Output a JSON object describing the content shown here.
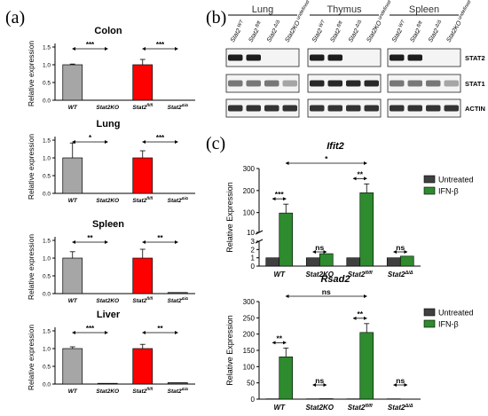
{
  "figure": {
    "panels": [
      {
        "label": "(a)"
      },
      {
        "label": "(b)"
      },
      {
        "label": "(c)"
      }
    ]
  },
  "panel_a_label": "(a)",
  "panel_b_label": "(b)",
  "panel_c_label": "(c)",
  "colors": {
    "wt": "#a6a6a6",
    "flox": "#ff0000",
    "untreated": "#404040",
    "ifn": "#2e8b2e"
  },
  "chart_data": [
    {
      "type": "bar",
      "title": "Colon",
      "ylabel": "Relative expression",
      "categories": [
        "WT",
        "Stat2KO",
        "Stat2fl/fl",
        "Stat2Δ/Δ"
      ],
      "values": [
        1.0,
        0.0,
        1.0,
        0.0
      ],
      "errors": [
        0.02,
        0,
        0.15,
        0
      ],
      "ylim": [
        0,
        1.5
      ],
      "yticks": [
        "0.0",
        "0.5",
        "1.0",
        "1.5"
      ],
      "significance": [
        "***",
        "***"
      ]
    },
    {
      "type": "bar",
      "title": "Lung",
      "ylabel": "Relative expression",
      "categories": [
        "WT",
        "Stat2KO",
        "Stat2fl/fl",
        "Stat2Δ/Δ"
      ],
      "values": [
        1.0,
        0.0,
        1.0,
        0.0
      ],
      "errors": [
        0.42,
        0,
        0.2,
        0
      ],
      "ylim": [
        0,
        1.5
      ],
      "yticks": [
        "0.0",
        "0.5",
        "1.0",
        "1.5"
      ],
      "significance": [
        "*",
        "***"
      ]
    },
    {
      "type": "bar",
      "title": "Spleen",
      "ylabel": "Relative expression",
      "categories": [
        "WT",
        "Stat2KO",
        "Stat2fl/fl",
        "Stat2Δ/Δ"
      ],
      "values": [
        1.0,
        0.0,
        1.0,
        0.03
      ],
      "errors": [
        0.18,
        0,
        0.25,
        0
      ],
      "ylim": [
        0,
        1.5
      ],
      "yticks": [
        "0.0",
        "0.5",
        "1.0",
        "1.5"
      ],
      "significance": [
        "**",
        "**"
      ]
    },
    {
      "type": "bar",
      "title": "Liver",
      "ylabel": "Relative expression",
      "categories": [
        "WT",
        "Stat2KO",
        "Stat2fl/fl",
        "Stat2Δ/Δ"
      ],
      "values": [
        1.0,
        0.02,
        1.0,
        0.04
      ],
      "errors": [
        0.05,
        0,
        0.12,
        0
      ],
      "ylim": [
        0,
        1.5
      ],
      "yticks": [
        "0.0",
        "0.5",
        "1.0",
        "1.5"
      ],
      "significance": [
        "***",
        "**"
      ]
    },
    {
      "type": "bar",
      "title": "Ifit2",
      "ylabel": "Relative Expression",
      "categories": [
        "WT",
        "Stat2KO",
        "Stat2fl/fl",
        "Stat2Δ/Δ"
      ],
      "series": [
        {
          "name": "Untreated",
          "values": [
            1,
            1,
            1,
            1
          ]
        },
        {
          "name": "IFN-β",
          "values": [
            98,
            1.5,
            190,
            1.2
          ]
        }
      ],
      "yticks": [
        "0",
        "1",
        "2",
        "3",
        "10",
        "100",
        "200",
        "300"
      ],
      "axis_break": true,
      "significance": [
        "***",
        "ns",
        "**",
        "ns",
        "*"
      ]
    },
    {
      "type": "bar",
      "title": "Rsad2",
      "ylabel": "Relative Expression",
      "categories": [
        "WT",
        "Stat2KO",
        "Stat2fl/fl",
        "Stat2Δ/Δ"
      ],
      "series": [
        {
          "name": "Untreated",
          "values": [
            1,
            1,
            1,
            1
          ]
        },
        {
          "name": "IFN-β",
          "values": [
            130,
            1.5,
            205,
            0.5
          ]
        }
      ],
      "ylim": [
        0,
        300
      ],
      "yticks": [
        "0",
        "50",
        "100",
        "150",
        "200",
        "250",
        "300"
      ],
      "significance": [
        "**",
        "ns",
        "**",
        "ns",
        "ns"
      ]
    }
  ],
  "western": {
    "tissues": [
      "Lung",
      "Thymus",
      "Spleen"
    ],
    "lanes": [
      "Stat2 WT",
      "Stat2 fl/fl",
      "Stat2 Δ/Δ",
      "Stat2KO"
    ],
    "proteins": [
      "STAT2",
      "STAT1",
      "ACTIN"
    ]
  }
}
